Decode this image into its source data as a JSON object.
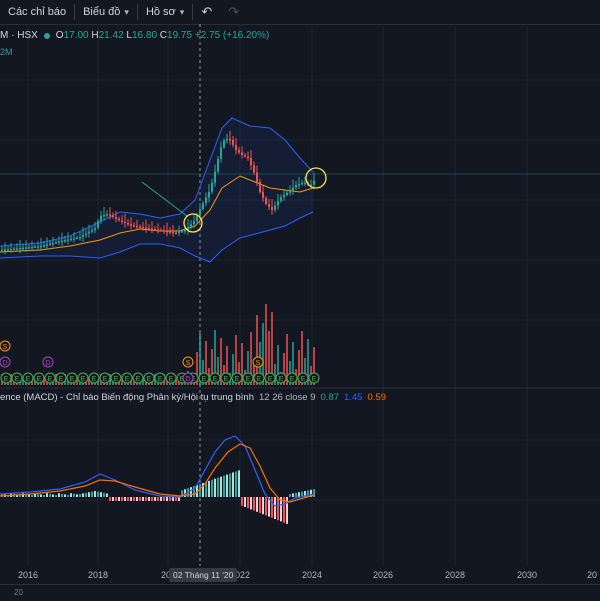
{
  "toolbar": {
    "indicators_label": "Các chỉ báo",
    "chart_label": "Biểu đồ",
    "profile_label": "Hồ sơ"
  },
  "legend": {
    "symbol": "M · HSX",
    "o_key": "O",
    "o_val": "17.00",
    "h_key": "H",
    "h_val": "21.42",
    "l_key": "L",
    "l_val": "16.80",
    "c_key": "C",
    "c_val": "19.75",
    "change": "+2.75 (+16.20%)",
    "sub": "2M"
  },
  "macd": {
    "title": "ence (MACD) - Chỉ báo Biến động Phân kỳ/Hội tụ trung bình",
    "params": "12 26 close 9",
    "v1": "0.87",
    "v2": "1.45",
    "v3": "0.59"
  },
  "xaxis": {
    "ticks": [
      "2016",
      "2018",
      "20",
      "2022",
      "2024",
      "2026",
      "2028",
      "2030",
      "20"
    ],
    "crosshair": "02 Tháng 11 '20"
  },
  "bottom": {
    "label": "20"
  },
  "markers": {
    "s": "S",
    "d": "D",
    "e": "E"
  },
  "colors": {
    "bg": "#131722",
    "up": "#26a69a",
    "down": "#ef5350",
    "band": "#2962ff",
    "ma": "#ff9800",
    "highlight": "#ffeb3b"
  }
}
